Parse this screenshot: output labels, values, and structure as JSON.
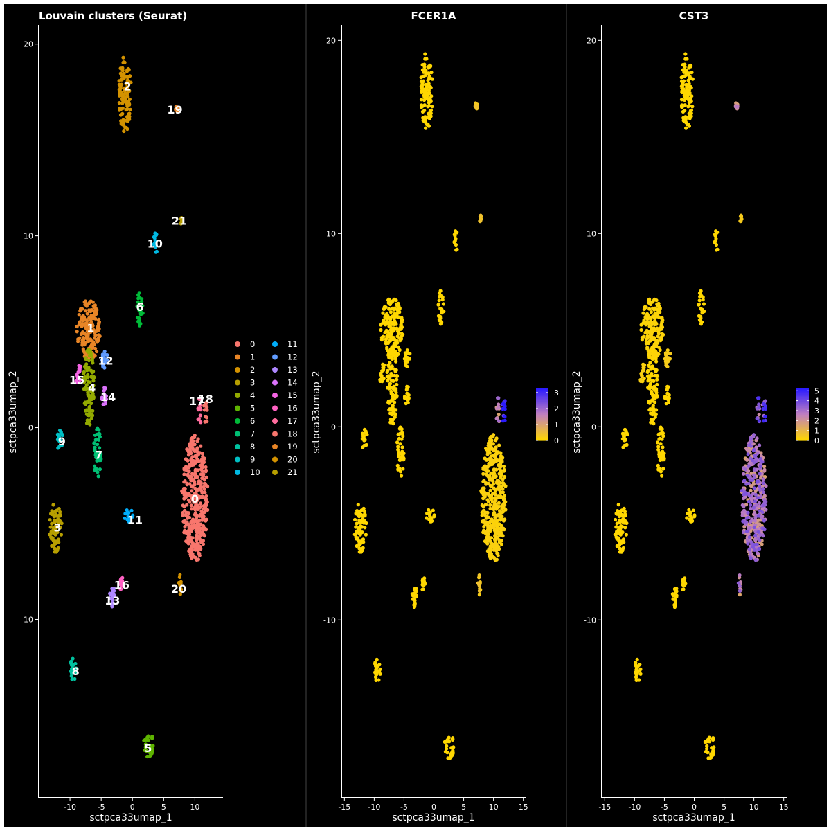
{
  "chart_data": [
    {
      "type": "scatter",
      "title": "Louvain clusters (Seurat)",
      "xlabel": "sctpca33umap_1",
      "ylabel": "sctpca33umap_2",
      "xlim": [
        -15,
        14.5
      ],
      "ylim": [
        -19.3,
        21
      ],
      "x_ticks": [
        -10,
        -5,
        0,
        5,
        10
      ],
      "y_ticks": [
        -10,
        0,
        10,
        20
      ],
      "x_tick_labels": [
        "-10",
        "-5",
        "0",
        "5",
        "10"
      ],
      "y_tick_labels": [
        "-10",
        "0",
        "10",
        "20"
      ],
      "background": "#000000",
      "grid": false,
      "legend_position": "right",
      "legend": {
        "labels": [
          "0",
          "1",
          "2",
          "3",
          "4",
          "5",
          "6",
          "7",
          "8",
          "9",
          "10",
          "11",
          "12",
          "13",
          "14",
          "15",
          "16",
          "17",
          "18",
          "19",
          "20",
          "21"
        ],
        "colors": [
          "#F8766D",
          "#E88526",
          "#D39200",
          "#B79F00",
          "#93AA00",
          "#5EB300",
          "#00BA38",
          "#00BF74",
          "#00C19F",
          "#00BFC4",
          "#00B9E3",
          "#00ADFA",
          "#619CFF",
          "#AE87FF",
          "#DB72FB",
          "#F564E3",
          "#FF61C3",
          "#FF6C9D",
          "#F8766D",
          "#E88526",
          "#D39200",
          "#B79F00"
        ]
      },
      "clusters": [
        {
          "label": "0",
          "color": "#F8766D",
          "cx": 10.0,
          "cy": -3.7,
          "rx": 2.1,
          "ry": 3.3
        },
        {
          "label": "1",
          "color": "#E88526",
          "cx": -7.0,
          "cy": 5.1,
          "rx": 1.9,
          "ry": 1.6
        },
        {
          "label": "2",
          "color": "#D39200",
          "cx": -1.2,
          "cy": 17.4,
          "rx": 1.0,
          "ry": 2.0
        },
        {
          "label": "3",
          "color": "#B79F00",
          "cx": -12.3,
          "cy": -5.2,
          "rx": 1.0,
          "ry": 1.3
        },
        {
          "label": "4",
          "color": "#93AA00",
          "cx": -7.0,
          "cy": 2.1,
          "rx": 0.9,
          "ry": 2.0
        },
        {
          "label": "5",
          "color": "#5EB300",
          "cx": 2.6,
          "cy": -16.5,
          "rx": 0.8,
          "ry": 0.7
        },
        {
          "label": "6",
          "color": "#00BA38",
          "cx": 1.2,
          "cy": 6.2,
          "rx": 0.5,
          "ry": 0.9
        },
        {
          "label": "7",
          "color": "#00BF74",
          "cx": -5.6,
          "cy": -1.3,
          "rx": 0.6,
          "ry": 1.3
        },
        {
          "label": "8",
          "color": "#00C19F",
          "cx": -9.4,
          "cy": -12.6,
          "rx": 0.6,
          "ry": 0.6
        },
        {
          "label": "9",
          "color": "#00BFC4",
          "cx": -11.6,
          "cy": -0.6,
          "rx": 0.5,
          "ry": 0.6
        },
        {
          "label": "10",
          "color": "#00B9E3",
          "cx": 3.7,
          "cy": 9.6,
          "rx": 0.3,
          "ry": 0.6
        },
        {
          "label": "11",
          "color": "#00ADFA",
          "cx": -0.5,
          "cy": -4.6,
          "rx": 0.8,
          "ry": 0.4
        },
        {
          "label": "12",
          "color": "#619CFF",
          "cx": -4.5,
          "cy": 3.7,
          "rx": 0.5,
          "ry": 0.6
        },
        {
          "label": "13",
          "color": "#AE87FF",
          "cx": -3.3,
          "cy": -8.8,
          "rx": 0.4,
          "ry": 0.8
        },
        {
          "label": "14",
          "color": "#DB72FB",
          "cx": -4.4,
          "cy": 1.6,
          "rx": 0.5,
          "ry": 0.5
        },
        {
          "label": "15",
          "color": "#F564E3",
          "cx": -8.6,
          "cy": 2.7,
          "rx": 0.5,
          "ry": 0.6
        },
        {
          "label": "16",
          "color": "#FF61C3",
          "cx": -1.7,
          "cy": -8.2,
          "rx": 0.3,
          "ry": 0.4
        },
        {
          "label": "17",
          "color": "#FF6C9D",
          "cx": 10.7,
          "cy": 0.8,
          "rx": 0.3,
          "ry": 0.8
        },
        {
          "label": "18",
          "color": "#F8766D",
          "cx": 11.7,
          "cy": 0.8,
          "rx": 0.3,
          "ry": 0.8
        },
        {
          "label": "19",
          "color": "#E88526",
          "cx": 7.1,
          "cy": 16.6,
          "rx": 0.2,
          "ry": 0.2
        },
        {
          "label": "20",
          "color": "#D39200",
          "cx": 7.7,
          "cy": -8.2,
          "rx": 0.3,
          "ry": 0.6
        },
        {
          "label": "21",
          "color": "#B79F00",
          "cx": 7.8,
          "cy": 10.8,
          "rx": 0.2,
          "ry": 0.2
        }
      ],
      "cluster_labels": [
        {
          "text": "0",
          "x": 10.0,
          "y": -3.7
        },
        {
          "text": "1",
          "x": -6.7,
          "y": 5.2
        },
        {
          "text": "2",
          "x": -0.8,
          "y": 17.8
        },
        {
          "text": "3",
          "x": -12.0,
          "y": -5.2
        },
        {
          "text": "4",
          "x": -6.5,
          "y": 2.1
        },
        {
          "text": "5",
          "x": 2.5,
          "y": -16.7
        },
        {
          "text": "6",
          "x": 1.2,
          "y": 6.3
        },
        {
          "text": "7",
          "x": -5.4,
          "y": -1.4
        },
        {
          "text": "8",
          "x": -9.1,
          "y": -12.7
        },
        {
          "text": "9",
          "x": -11.3,
          "y": -0.7
        },
        {
          "text": "10",
          "x": 3.6,
          "y": 9.6
        },
        {
          "text": "11",
          "x": 0.4,
          "y": -4.8
        },
        {
          "text": "12",
          "x": -4.3,
          "y": 3.5
        },
        {
          "text": "13",
          "x": -3.2,
          "y": -9.0
        },
        {
          "text": "14",
          "x": -3.9,
          "y": 1.6
        },
        {
          "text": "15",
          "x": -8.9,
          "y": 2.5
        },
        {
          "text": "16",
          "x": -1.7,
          "y": -8.2
        },
        {
          "text": "17",
          "x": 10.3,
          "y": 1.4
        },
        {
          "text": "18",
          "x": 11.7,
          "y": 1.5
        },
        {
          "text": "19",
          "x": 6.8,
          "y": 16.6
        },
        {
          "text": "20",
          "x": 7.4,
          "y": -8.4
        },
        {
          "text": "21",
          "x": 7.5,
          "y": 10.8
        }
      ]
    },
    {
      "type": "scatter",
      "title": "FCER1A",
      "xlabel": "sctpca33umap_1",
      "ylabel": "sctpca33umap_2",
      "xlim": [
        -15.5,
        15.5
      ],
      "ylim": [
        -19.2,
        20.8
      ],
      "x_ticks": [
        -15,
        -10,
        -5,
        0,
        5,
        10,
        15
      ],
      "y_ticks": [
        -10,
        0,
        10,
        20
      ],
      "x_tick_labels": [
        "-15",
        "-10",
        "-5",
        "0",
        "5",
        "10",
        "15"
      ],
      "y_tick_labels": [
        "-10",
        "0",
        "10",
        "20"
      ],
      "background": "#000000",
      "grid": false,
      "legend_position": "right",
      "colorbar": {
        "low_color": "#FFD700",
        "mid_color": "#C07FC0",
        "high_color": "#2B1BFF",
        "min": 0,
        "max": 3.3,
        "ticks": [
          0,
          1,
          2,
          3
        ],
        "tick_labels": [
          "0",
          "1",
          "2",
          "3"
        ]
      },
      "expression_note_values": {
        "cluster_value_by_label": {
          "0": 0.1,
          "17": 1.5,
          "18": 3.0,
          "1": 0.0,
          "2": 0.0,
          "3": 0.0,
          "4": 0.0,
          "5": 0.0,
          "6": 0.0,
          "7": 0.0,
          "8": 0.0,
          "9": 0.0,
          "10": 0.0,
          "11": 0.0,
          "12": 0.0,
          "13": 0.0,
          "14": 0.0,
          "15": 0.0,
          "16": 0.0,
          "19": 0.3,
          "20": 0.3,
          "21": 0.3
        }
      }
    },
    {
      "type": "scatter",
      "title": "CST3",
      "xlabel": "sctpca33umap_1",
      "ylabel": "sctpca33umap_2",
      "xlim": [
        -15.5,
        15.5
      ],
      "ylim": [
        -19.2,
        20.8
      ],
      "x_ticks": [
        -15,
        -10,
        -5,
        0,
        5,
        10,
        15
      ],
      "y_ticks": [
        -10,
        0,
        10,
        20
      ],
      "x_tick_labels": [
        "-15",
        "-10",
        "-5",
        "0",
        "5",
        "10",
        "15"
      ],
      "y_tick_labels": [
        "-10",
        "0",
        "10",
        "20"
      ],
      "background": "#000000",
      "grid": false,
      "legend_position": "right",
      "colorbar": {
        "low_color": "#FFD700",
        "mid_color": "#C07FC0",
        "high_color": "#2B1BFF",
        "min": 0,
        "max": 5.3,
        "ticks": [
          0,
          1,
          2,
          3,
          4,
          5
        ],
        "tick_labels": [
          "0",
          "1",
          "2",
          "3",
          "4",
          "5"
        ]
      },
      "expression_note_values": {
        "cluster_value_by_label": {
          "0": 2.7,
          "17": 3.5,
          "18": 3.5,
          "1": 0.1,
          "2": 0.0,
          "3": 0.0,
          "4": 0.0,
          "5": 0.0,
          "6": 0.0,
          "7": 0.0,
          "8": 0.0,
          "9": 0.0,
          "10": 0.0,
          "11": 0.0,
          "12": 0.3,
          "13": 0.0,
          "14": 0.0,
          "15": 0.2,
          "16": 0.0,
          "19": 2.0,
          "20": 2.5,
          "21": 0.3
        }
      }
    }
  ]
}
